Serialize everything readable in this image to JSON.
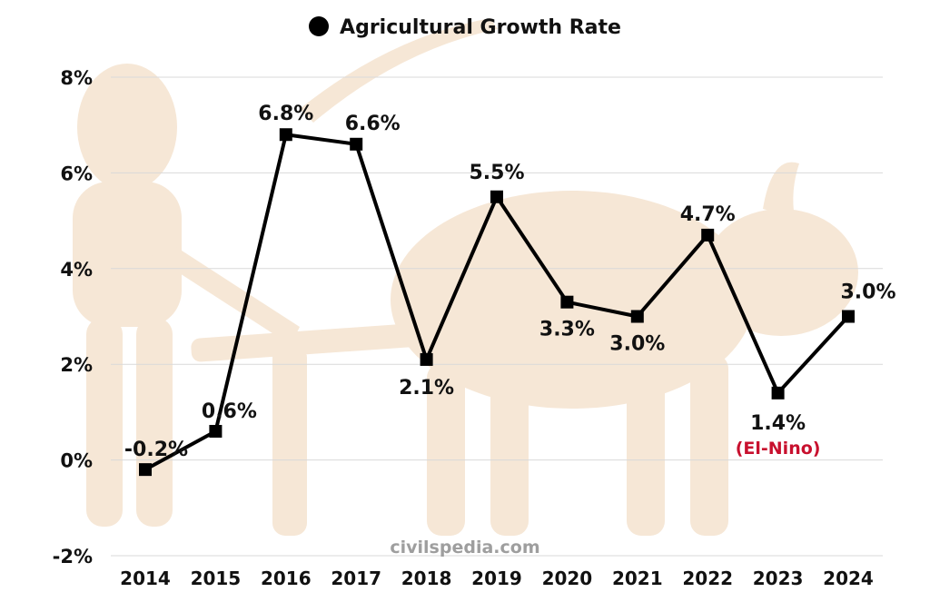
{
  "legend": {
    "label": "Agricultural Growth Rate",
    "marker": "black-circle"
  },
  "watermark": "civilspedia.com",
  "colors": {
    "series": "#000000",
    "grid": "#d9d9d9",
    "annotation": "#c8102e",
    "background_art": "#f6e7d6"
  },
  "chart_data": {
    "type": "line",
    "title": "",
    "xlabel": "",
    "ylabel": "",
    "categories": [
      "2014",
      "2015",
      "2016",
      "2017",
      "2018",
      "2019",
      "2020",
      "2021",
      "2022",
      "2023",
      "2024"
    ],
    "series": [
      {
        "name": "Agricultural Growth Rate",
        "values": [
          -0.2,
          0.6,
          6.8,
          6.6,
          2.1,
          5.5,
          3.3,
          3.0,
          4.7,
          1.4,
          3.0
        ],
        "data_labels": [
          "-0.2%",
          "0.6%",
          "6.8%",
          "6.6%",
          "2.1%",
          "5.5%",
          "3.3%",
          "3.0%",
          "4.7%",
          "1.4%",
          "3.0%"
        ],
        "marker": "square"
      }
    ],
    "ylim": [
      -2,
      8
    ],
    "yticks": [
      -2,
      0,
      2,
      4,
      6,
      8
    ],
    "ytick_labels": [
      "-2%",
      "0%",
      "2%",
      "4%",
      "6%",
      "8%"
    ],
    "grid": true,
    "legend_position": "top-center",
    "annotations": [
      {
        "category": "2023",
        "text": "(El-Nino)"
      }
    ]
  }
}
